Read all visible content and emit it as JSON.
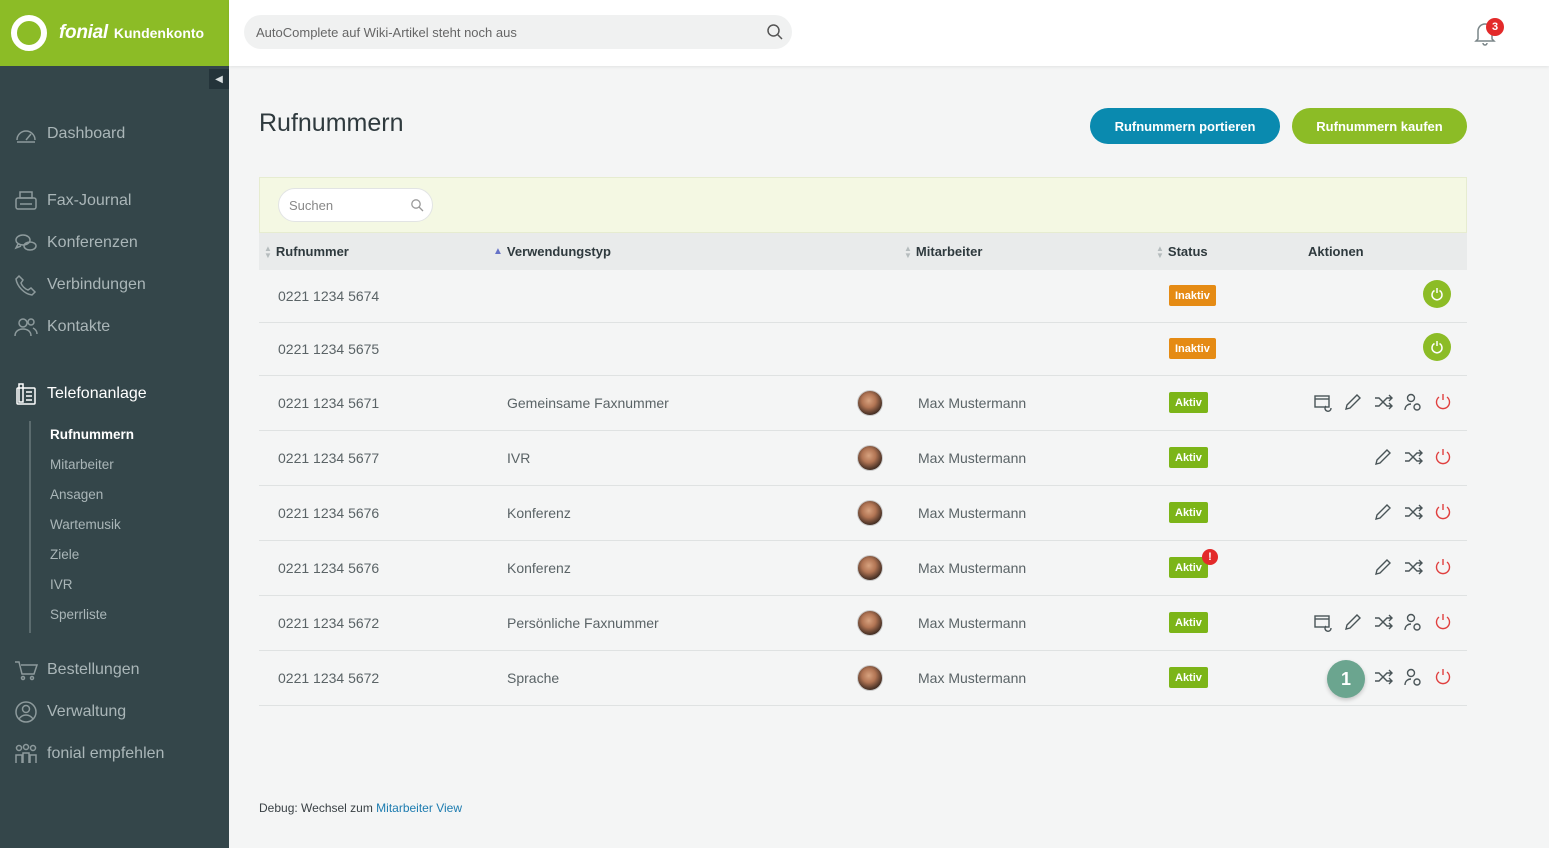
{
  "brand": {
    "name": "fonial",
    "subtitle": "Kundenkonto"
  },
  "topbar": {
    "search_placeholder": "AutoComplete auf Wiki-Artikel steht noch aus",
    "notifications_count": "3"
  },
  "sidebar": {
    "items": [
      {
        "label": "Dashboard",
        "icon": "speedometer-icon"
      },
      {
        "label": "Fax-Journal",
        "icon": "fax-icon"
      },
      {
        "label": "Konferenzen",
        "icon": "chat-bubbles-icon"
      },
      {
        "label": "Verbindungen",
        "icon": "phone-icon"
      },
      {
        "label": "Kontakte",
        "icon": "contacts-icon"
      },
      {
        "label": "Telefonanlage",
        "icon": "pbx-icon"
      },
      {
        "label": "Bestellungen",
        "icon": "cart-icon"
      },
      {
        "label": "Verwaltung",
        "icon": "user-circle-icon"
      },
      {
        "label": "fonial empfehlen",
        "icon": "people-icon"
      }
    ],
    "subitems": [
      "Rufnummern",
      "Mitarbeiter",
      "Ansagen",
      "Wartemusik",
      "Ziele",
      "IVR",
      "Sperrliste"
    ]
  },
  "page": {
    "title": "Rufnummern",
    "btn_port": "Rufnummern portieren",
    "btn_buy": "Rufnummern kaufen",
    "table_search_placeholder": "Suchen"
  },
  "table": {
    "headers": {
      "number": "Rufnummer",
      "usage": "Verwendungstyp",
      "employee": "Mitarbeiter",
      "status": "Status",
      "actions": "Aktionen"
    },
    "rows": [
      {
        "number": "0221 1234 5674",
        "usage": "",
        "employee": "",
        "status": "Inaktiv"
      },
      {
        "number": "0221 1234 5675",
        "usage": "",
        "employee": "",
        "status": "Inaktiv"
      },
      {
        "number": "0221 1234 5671",
        "usage": "Gemeinsame Faxnummer",
        "employee": "Max Mustermann",
        "status": "Aktiv"
      },
      {
        "number": "0221 1234 5677",
        "usage": "IVR",
        "employee": "Max Mustermann",
        "status": "Aktiv"
      },
      {
        "number": "0221 1234 5676",
        "usage": "Konferenz",
        "employee": "Max Mustermann",
        "status": "Aktiv"
      },
      {
        "number": "0221 1234 5676",
        "usage": "Konferenz",
        "employee": "Max Mustermann",
        "status": "Aktiv",
        "warning": "!"
      },
      {
        "number": "0221 1234 5672",
        "usage": "Persönliche Faxnummer",
        "employee": "Max Mustermann",
        "status": "Aktiv"
      },
      {
        "number": "0221 1234 5672",
        "usage": "Sprache",
        "employee": "Max Mustermann",
        "status": "Aktiv",
        "step": "1"
      }
    ]
  },
  "footer": {
    "debug_text": "Debug: Wechsel zum ",
    "debug_link": "Mitarbeiter View"
  },
  "colors": {
    "brand_green": "#8cbc26",
    "sidebar": "#34464a",
    "port_blue": "#0a8aaf",
    "inactive_orange": "#e58b14",
    "active_green": "#7cb518"
  }
}
